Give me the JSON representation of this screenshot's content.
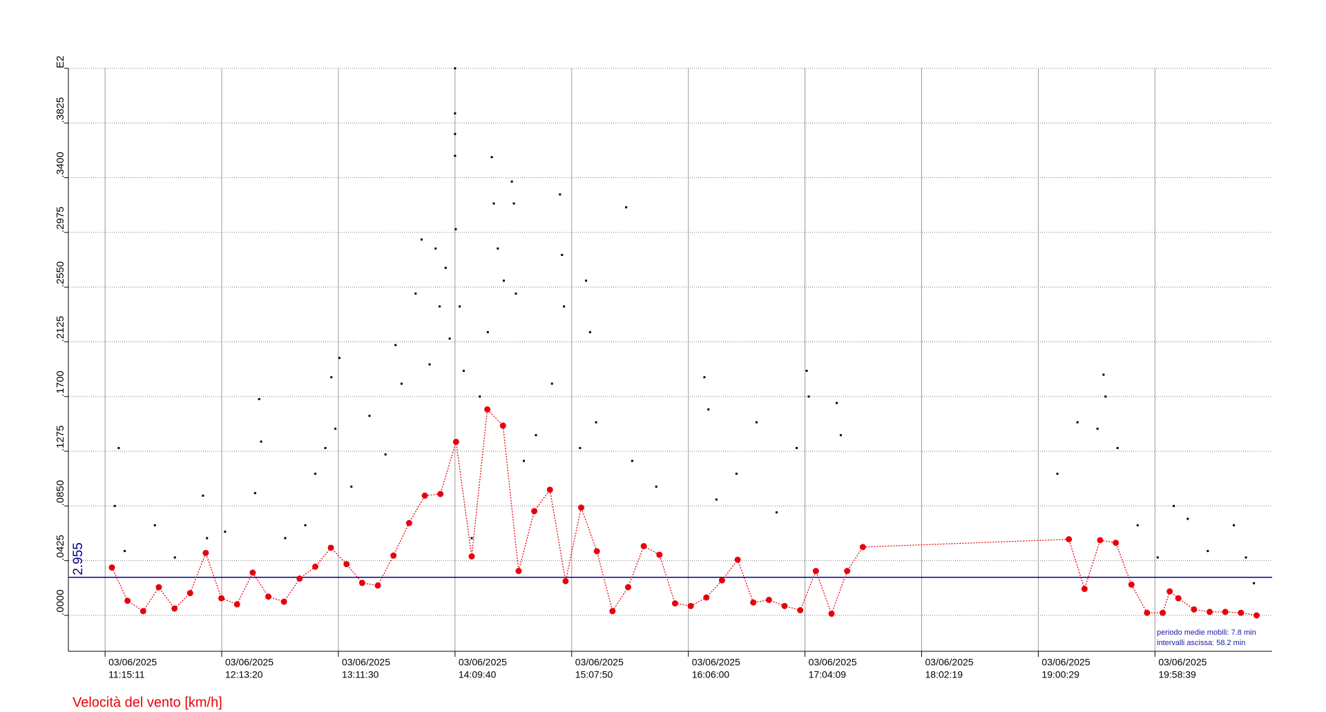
{
  "chart_data": {
    "type": "scatter",
    "xlim": [
      "10:56:53",
      "20:57:04"
    ],
    "ylim": [
      -0.0279,
      0.425
    ],
    "yticks": [
      {
        "value": 0,
        "label": ".0000"
      },
      {
        "value": 0.0425,
        "label": ".0425"
      },
      {
        "value": 0.085,
        "label": ".0850"
      },
      {
        "value": 0.1275,
        "label": ".1275"
      },
      {
        "value": 0.17,
        "label": ".1700"
      },
      {
        "value": 0.2125,
        "label": ".2125"
      },
      {
        "value": 0.255,
        "label": ".2550"
      },
      {
        "value": 0.2975,
        "label": ".2975"
      },
      {
        "value": 0.34,
        "label": ".3400"
      },
      {
        "value": 0.3825,
        "label": ".3825"
      },
      {
        "value": 0.425,
        "label": "E2"
      }
    ],
    "xticks": [
      {
        "value": "11:15:11",
        "label": [
          "03/06/2025",
          "11:15:11"
        ]
      },
      {
        "value": "12:13:20",
        "label": [
          "03/06/2025",
          "12:13:20"
        ]
      },
      {
        "value": "13:11:30",
        "label": [
          "03/06/2025",
          "13:11:30"
        ]
      },
      {
        "value": "14:09:40",
        "label": [
          "03/06/2025",
          "14:09:40"
        ]
      },
      {
        "value": "15:07:50",
        "label": [
          "03/06/2025",
          "15:07:50"
        ]
      },
      {
        "value": "16:06:00",
        "label": [
          "03/06/2025",
          "16:06:00"
        ]
      },
      {
        "value": "17:04:09",
        "label": [
          "03/06/2025",
          "17:04:09"
        ]
      },
      {
        "value": "18:02:19",
        "label": [
          "03/06/2025",
          "18:02:19"
        ]
      },
      {
        "value": "19:00:29",
        "label": [
          "03/06/2025",
          "19:00:29"
        ]
      },
      {
        "value": "19:58:39",
        "label": [
          "03/06/2025",
          "19:58:39"
        ]
      }
    ],
    "grid": true,
    "series": [
      {
        "type": "scatter",
        "color": "#000000",
        "x": [
          "11:20:00",
          "11:22:00",
          "11:25:00",
          "11:40:00",
          "11:50:00",
          "12:04:00",
          "12:06:00",
          "12:15:00",
          "12:30:00",
          "12:32:00",
          "12:33:00",
          "12:45:00",
          "12:55:00",
          "13:00:00",
          "13:05:00",
          "13:08:00",
          "13:10:00",
          "13:12:00",
          "13:18:00",
          "13:27:00",
          "13:35:00",
          "13:40:00",
          "13:43:00",
          "13:50:00",
          "13:53:00",
          "13:57:00",
          "14:00:00",
          "14:02:00",
          "14:05:00",
          "14:07:00",
          "14:09:40",
          "14:09:40",
          "14:09:40",
          "14:09:40",
          "14:10:00",
          "14:12:00",
          "14:14:00",
          "14:18:00",
          "14:22:00",
          "14:26:00",
          "14:28:00",
          "14:29:00",
          "14:31:00",
          "14:34:00",
          "14:38:00",
          "14:39:00",
          "14:40:00",
          "14:44:00",
          "14:50:00",
          "14:58:00",
          "15:02:00",
          "15:03:00",
          "15:04:00",
          "15:12:00",
          "15:15:00",
          "15:17:00",
          "15:20:00",
          "15:35:00",
          "15:38:00",
          "15:50:00",
          "16:14:00",
          "16:16:00",
          "16:20:00",
          "16:30:00",
          "16:40:00",
          "16:50:00",
          "17:00:00",
          "17:05:00",
          "17:06:00",
          "17:20:00",
          "17:22:00",
          "19:10:00",
          "19:20:00",
          "19:30:00",
          "19:33:00",
          "19:34:00",
          "19:40:00",
          "19:50:00",
          "20:00:00",
          "20:08:00",
          "20:15:00",
          "20:25:00",
          "20:38:00",
          "20:44:00",
          "20:48:00"
        ],
        "values": [
          0.085,
          0.13,
          0.05,
          0.07,
          0.045,
          0.093,
          0.06,
          0.065,
          0.095,
          0.168,
          0.135,
          0.06,
          0.07,
          0.11,
          0.13,
          0.185,
          0.145,
          0.2,
          0.1,
          0.155,
          0.125,
          0.21,
          0.18,
          0.25,
          0.292,
          0.195,
          0.285,
          0.24,
          0.27,
          0.215,
          0.425,
          0.39,
          0.374,
          0.357,
          0.3,
          0.24,
          0.19,
          0.06,
          0.17,
          0.22,
          0.356,
          0.32,
          0.285,
          0.26,
          0.337,
          0.32,
          0.25,
          0.12,
          0.14,
          0.18,
          0.327,
          0.28,
          0.24,
          0.13,
          0.26,
          0.22,
          0.15,
          0.317,
          0.12,
          0.1,
          0.185,
          0.16,
          0.09,
          0.11,
          0.15,
          0.08,
          0.13,
          0.19,
          0.17,
          0.165,
          0.14,
          0.11,
          0.15,
          0.145,
          0.187,
          0.17,
          0.13,
          0.07,
          0.045,
          0.085,
          0.075,
          0.05,
          0.07,
          0.045,
          0.025
        ]
      },
      {
        "type": "line",
        "name": "Velocità del vento [km/h]",
        "color": "#e8000b",
        "x": [
          "11:18:35",
          "11:26:23",
          "11:34:11",
          "11:41:59",
          "11:49:47",
          "11:57:35",
          "12:05:23",
          "12:13:11",
          "12:20:59",
          "12:28:47",
          "12:36:35",
          "12:44:23",
          "12:52:11",
          "12:59:59",
          "13:07:47",
          "13:15:35",
          "13:23:23",
          "13:31:11",
          "13:38:59",
          "13:46:47",
          "13:54:35",
          "14:02:23",
          "14:10:11",
          "14:17:59",
          "14:25:47",
          "14:33:35",
          "14:41:23",
          "14:49:11",
          "14:56:59",
          "15:04:47",
          "15:12:35",
          "15:20:23",
          "15:28:11",
          "15:35:59",
          "15:43:47",
          "15:51:35",
          "15:59:23",
          "16:07:11",
          "16:14:59",
          "16:22:47",
          "16:30:35",
          "16:38:23",
          "16:46:11",
          "16:53:59",
          "17:01:47",
          "17:09:35",
          "17:17:23",
          "17:25:11",
          "17:32:59",
          "19:15:43",
          "19:23:31",
          "19:31:19",
          "19:39:07",
          "19:46:55",
          "19:54:43",
          "20:02:31",
          "20:06:00",
          "20:10:19",
          "20:18:07",
          "20:25:55",
          "20:33:43",
          "20:41:31",
          "20:49:19"
        ],
        "values": [
          0.0372,
          0.0113,
          0.0033,
          0.0219,
          0.0053,
          0.0173,
          0.0485,
          0.0133,
          0.0086,
          0.0332,
          0.0146,
          0.0106,
          0.0286,
          0.0378,
          0.0525,
          0.0398,
          0.0252,
          0.0232,
          0.0465,
          0.0717,
          0.093,
          0.0943,
          0.1348,
          0.0458,
          0.16,
          0.1474,
          0.0345,
          0.081,
          0.0976,
          0.0266,
          0.0837,
          0.0498,
          0.0033,
          0.0219,
          0.0538,
          0.0471,
          0.0093,
          0.0073,
          0.0139,
          0.0272,
          0.0432,
          0.01,
          0.012,
          0.0073,
          0.004,
          0.0345,
          0.0013,
          0.0345,
          0.0531,
          0.0591,
          0.0206,
          0.0584,
          0.0564,
          0.0239,
          0.002,
          0.002,
          0.0186,
          0.0133,
          0.0046,
          0.0027,
          0.0027,
          0.002,
          0
        ]
      }
    ],
    "reference_lines": [
      {
        "value": 0.02955,
        "label": "2.955",
        "color": "#00008b"
      }
    ],
    "annotations": [
      "periodo medie mobili: 7.8 min",
      "intervalli ascissa: 58.2 min"
    ]
  }
}
